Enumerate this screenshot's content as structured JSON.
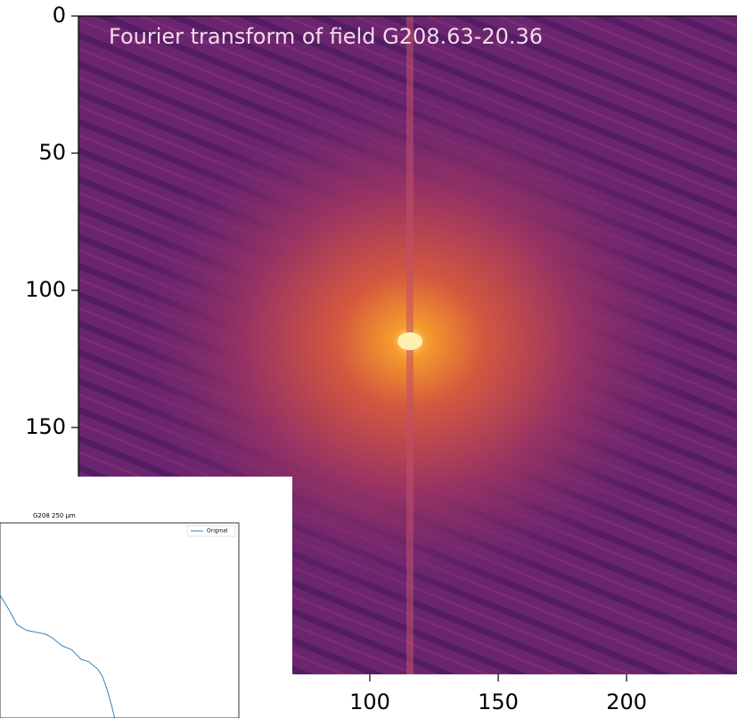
{
  "chart_data": [
    {
      "type": "image",
      "title": "Fourier transform of field G208.63-20.36",
      "xlim": [
        -13.5,
        243
      ],
      "ylim": [
        0,
        240
      ],
      "y_inverted": true,
      "xticks": [
        100,
        150,
        200
      ],
      "yticks": [
        0,
        50,
        100,
        150
      ]
    },
    {
      "type": "line",
      "title": "G208 250 μm",
      "legend": "upper right",
      "x": [
        0,
        4,
        7,
        11,
        15,
        19,
        22,
        26,
        30,
        34,
        37,
        41,
        43,
        45,
        47,
        48
      ],
      "series": [
        {
          "name": "Original",
          "color": "#1f77b4",
          "values": [
            63,
            55,
            48,
            45,
            44,
            43,
            41,
            37,
            35,
            30,
            29,
            25,
            21,
            14,
            5,
            0
          ]
        }
      ],
      "xlim": [
        0,
        100
      ],
      "ylim": [
        0,
        100
      ]
    }
  ]
}
